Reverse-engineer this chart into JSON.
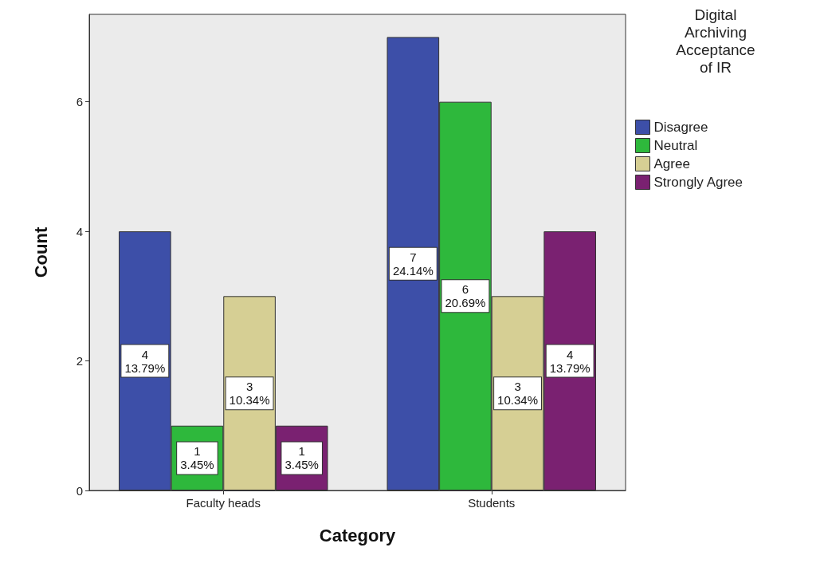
{
  "chart_data": {
    "type": "bar",
    "xlabel": "Category",
    "ylabel": "Count",
    "legend_title": "Digital\nArchiving\nAcceptance\nof IR",
    "categories": [
      "Faculty heads",
      "Students"
    ],
    "series": [
      {
        "name": "Disagree",
        "color": "#3d4fa8",
        "values": [
          4,
          7
        ],
        "value_labels": [
          "4\n13.79%",
          "7\n24.14%"
        ]
      },
      {
        "name": "Neutral",
        "color": "#2eb83c",
        "values": [
          1,
          6
        ],
        "value_labels": [
          "1\n3.45%",
          "6\n20.69%"
        ]
      },
      {
        "name": "Agree",
        "color": "#d6cf94",
        "values": [
          3,
          3
        ],
        "value_labels": [
          "3\n10.34%",
          "3\n10.34%"
        ]
      },
      {
        "name": "Strongly Agree",
        "color": "#7a2171",
        "values": [
          1,
          4
        ],
        "value_labels": [
          "1\n3.45%",
          "4\n13.79%"
        ]
      }
    ],
    "ylim": [
      0,
      7.35
    ],
    "yticks": [
      0,
      2,
      4,
      6
    ],
    "grid": false,
    "legend": "right"
  }
}
